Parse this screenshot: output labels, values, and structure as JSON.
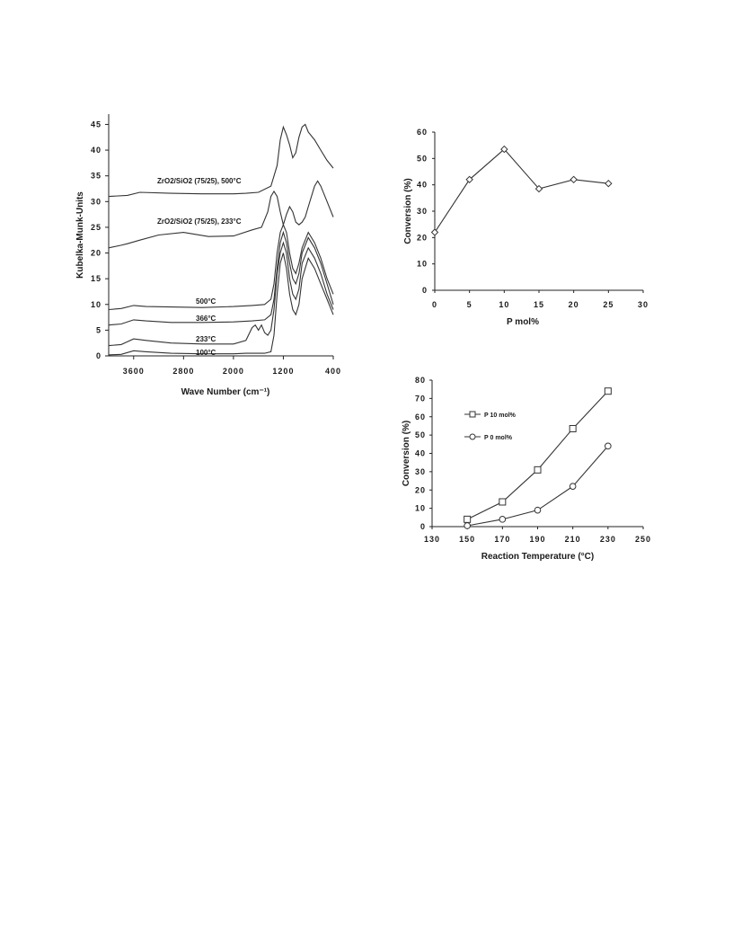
{
  "chart_data": [
    {
      "type": "line",
      "xlabel": "Wave Number (cm⁻¹)",
      "ylabel": "Kubelka-Munk-Units",
      "xlim": [
        4000,
        400
      ],
      "ylim": [
        0,
        47
      ],
      "xticks": [
        "3600",
        "2800",
        "2000",
        "1200",
        "400"
      ],
      "yticks": [
        "0",
        "5",
        "10",
        "15",
        "20",
        "25",
        "30",
        "35",
        "40",
        "45"
      ],
      "series": [
        {
          "name": "ZrO2/SiO2  (75/25),  500°C",
          "points": [
            [
              4000,
              31
            ],
            [
              3700,
              31.2
            ],
            [
              3500,
              31.8
            ],
            [
              3000,
              31.6
            ],
            [
              2500,
              31.5
            ],
            [
              2000,
              31.5
            ],
            [
              1800,
              31.6
            ],
            [
              1600,
              31.8
            ],
            [
              1400,
              33
            ],
            [
              1300,
              37
            ],
            [
              1250,
              42
            ],
            [
              1200,
              44.5
            ],
            [
              1150,
              43
            ],
            [
              1100,
              41
            ],
            [
              1050,
              38.5
            ],
            [
              1000,
              39.5
            ],
            [
              950,
              42.5
            ],
            [
              900,
              44.5
            ],
            [
              850,
              45
            ],
            [
              800,
              43.5
            ],
            [
              700,
              42
            ],
            [
              600,
              40
            ],
            [
              500,
              38
            ],
            [
              400,
              36.5
            ]
          ]
        },
        {
          "name": "ZrO2/SiO2  (75/25),  233°C",
          "points": [
            [
              4000,
              21
            ],
            [
              3800,
              21.5
            ],
            [
              3700,
              21.8
            ],
            [
              3500,
              22.5
            ],
            [
              3200,
              23.5
            ],
            [
              2800,
              24
            ],
            [
              2400,
              23.2
            ],
            [
              2000,
              23.3
            ],
            [
              1700,
              24.5
            ],
            [
              1550,
              25
            ],
            [
              1450,
              28
            ],
            [
              1400,
              31
            ],
            [
              1350,
              32
            ],
            [
              1300,
              31
            ],
            [
              1250,
              28
            ],
            [
              1200,
              25.5
            ],
            [
              1150,
              27.5
            ],
            [
              1100,
              29
            ],
            [
              1050,
              28
            ],
            [
              1000,
              26
            ],
            [
              950,
              25.5
            ],
            [
              900,
              26
            ],
            [
              850,
              27
            ],
            [
              800,
              29
            ],
            [
              700,
              33
            ],
            [
              650,
              34
            ],
            [
              600,
              33
            ],
            [
              500,
              30
            ],
            [
              400,
              27
            ]
          ]
        },
        {
          "name": "500°C",
          "points": [
            [
              4000,
              9
            ],
            [
              3800,
              9.2
            ],
            [
              3600,
              9.8
            ],
            [
              3400,
              9.6
            ],
            [
              3000,
              9.5
            ],
            [
              2500,
              9.4
            ],
            [
              2000,
              9.6
            ],
            [
              1700,
              9.8
            ],
            [
              1500,
              10
            ],
            [
              1400,
              11
            ],
            [
              1350,
              14
            ],
            [
              1300,
              20
            ],
            [
              1250,
              24
            ],
            [
              1200,
              25.5
            ],
            [
              1150,
              24
            ],
            [
              1100,
              20
            ],
            [
              1050,
              17
            ],
            [
              1000,
              16
            ],
            [
              950,
              18
            ],
            [
              900,
              21
            ],
            [
              800,
              24
            ],
            [
              700,
              22
            ],
            [
              600,
              19
            ],
            [
              500,
              15
            ],
            [
              400,
              12
            ]
          ]
        },
        {
          "name": "366°C",
          "points": [
            [
              4000,
              6
            ],
            [
              3800,
              6.2
            ],
            [
              3600,
              7
            ],
            [
              3400,
              6.8
            ],
            [
              3000,
              6.5
            ],
            [
              2500,
              6.5
            ],
            [
              2000,
              6.6
            ],
            [
              1700,
              6.8
            ],
            [
              1500,
              7
            ],
            [
              1400,
              8
            ],
            [
              1350,
              11
            ],
            [
              1300,
              17
            ],
            [
              1250,
              22
            ],
            [
              1200,
              24
            ],
            [
              1150,
              22
            ],
            [
              1100,
              18
            ],
            [
              1050,
              15
            ],
            [
              1000,
              14
            ],
            [
              950,
              16
            ],
            [
              900,
              20
            ],
            [
              800,
              23
            ],
            [
              700,
              21
            ],
            [
              600,
              18
            ],
            [
              500,
              14
            ],
            [
              400,
              10
            ]
          ]
        },
        {
          "name": "233°C",
          "points": [
            [
              4000,
              2
            ],
            [
              3800,
              2.2
            ],
            [
              3600,
              3.3
            ],
            [
              3400,
              3
            ],
            [
              3000,
              2.5
            ],
            [
              2500,
              2.3
            ],
            [
              2000,
              2.3
            ],
            [
              1800,
              3
            ],
            [
              1700,
              5.5
            ],
            [
              1650,
              6
            ],
            [
              1600,
              5
            ],
            [
              1550,
              6
            ],
            [
              1500,
              4.5
            ],
            [
              1450,
              4
            ],
            [
              1400,
              5
            ],
            [
              1350,
              9
            ],
            [
              1300,
              16
            ],
            [
              1250,
              20
            ],
            [
              1200,
              22
            ],
            [
              1150,
              20
            ],
            [
              1100,
              15
            ],
            [
              1050,
              12
            ],
            [
              1000,
              11
            ],
            [
              950,
              13
            ],
            [
              900,
              18
            ],
            [
              800,
              21
            ],
            [
              700,
              19
            ],
            [
              600,
              16
            ],
            [
              500,
              12
            ],
            [
              400,
              9
            ]
          ]
        },
        {
          "name": "100°C",
          "points": [
            [
              4000,
              0.2
            ],
            [
              3800,
              0.3
            ],
            [
              3600,
              1
            ],
            [
              3400,
              0.8
            ],
            [
              3000,
              0.5
            ],
            [
              2500,
              0.4
            ],
            [
              2000,
              0.4
            ],
            [
              1800,
              0.5
            ],
            [
              1500,
              0.5
            ],
            [
              1400,
              0.8
            ],
            [
              1350,
              4
            ],
            [
              1300,
              12
            ],
            [
              1250,
              18
            ],
            [
              1200,
              20
            ],
            [
              1150,
              17
            ],
            [
              1100,
              12
            ],
            [
              1050,
              9
            ],
            [
              1000,
              8
            ],
            [
              950,
              10
            ],
            [
              900,
              15
            ],
            [
              800,
              19
            ],
            [
              700,
              17
            ],
            [
              600,
              14
            ],
            [
              500,
              11
            ],
            [
              400,
              8
            ]
          ]
        }
      ]
    },
    {
      "type": "line",
      "xlabel": "P mol%",
      "ylabel": "Conversion (%)",
      "xlim": [
        0,
        30
      ],
      "ylim": [
        0,
        60
      ],
      "xticks": [
        "0",
        "5",
        "10",
        "15",
        "20",
        "25",
        "30"
      ],
      "yticks": [
        "0",
        "10",
        "20",
        "30",
        "40",
        "50",
        "60"
      ],
      "series": [
        {
          "x": [
            0,
            5,
            10,
            15,
            20,
            25
          ],
          "values": [
            22,
            42,
            53.5,
            38.5,
            42,
            40.5
          ]
        }
      ]
    },
    {
      "type": "line",
      "xlabel": "Reaction Temperature (°C)",
      "ylabel": "Conversion (%)",
      "xlim": [
        130,
        250
      ],
      "ylim": [
        0,
        80
      ],
      "xticks": [
        "130",
        "150",
        "170",
        "190",
        "210",
        "230",
        "250"
      ],
      "yticks": [
        "0",
        "10",
        "20",
        "30",
        "40",
        "50",
        "60",
        "70",
        "80"
      ],
      "legend": "top-left",
      "series": [
        {
          "name": "P 10 mol%",
          "marker": "square",
          "x": [
            150,
            170,
            190,
            210,
            230
          ],
          "values": [
            4,
            13.5,
            31,
            53.5,
            74
          ]
        },
        {
          "name": "P 0 mol%",
          "marker": "circle",
          "x": [
            150,
            170,
            190,
            210,
            230
          ],
          "values": [
            0.5,
            4,
            9,
            22,
            44
          ]
        }
      ]
    }
  ]
}
